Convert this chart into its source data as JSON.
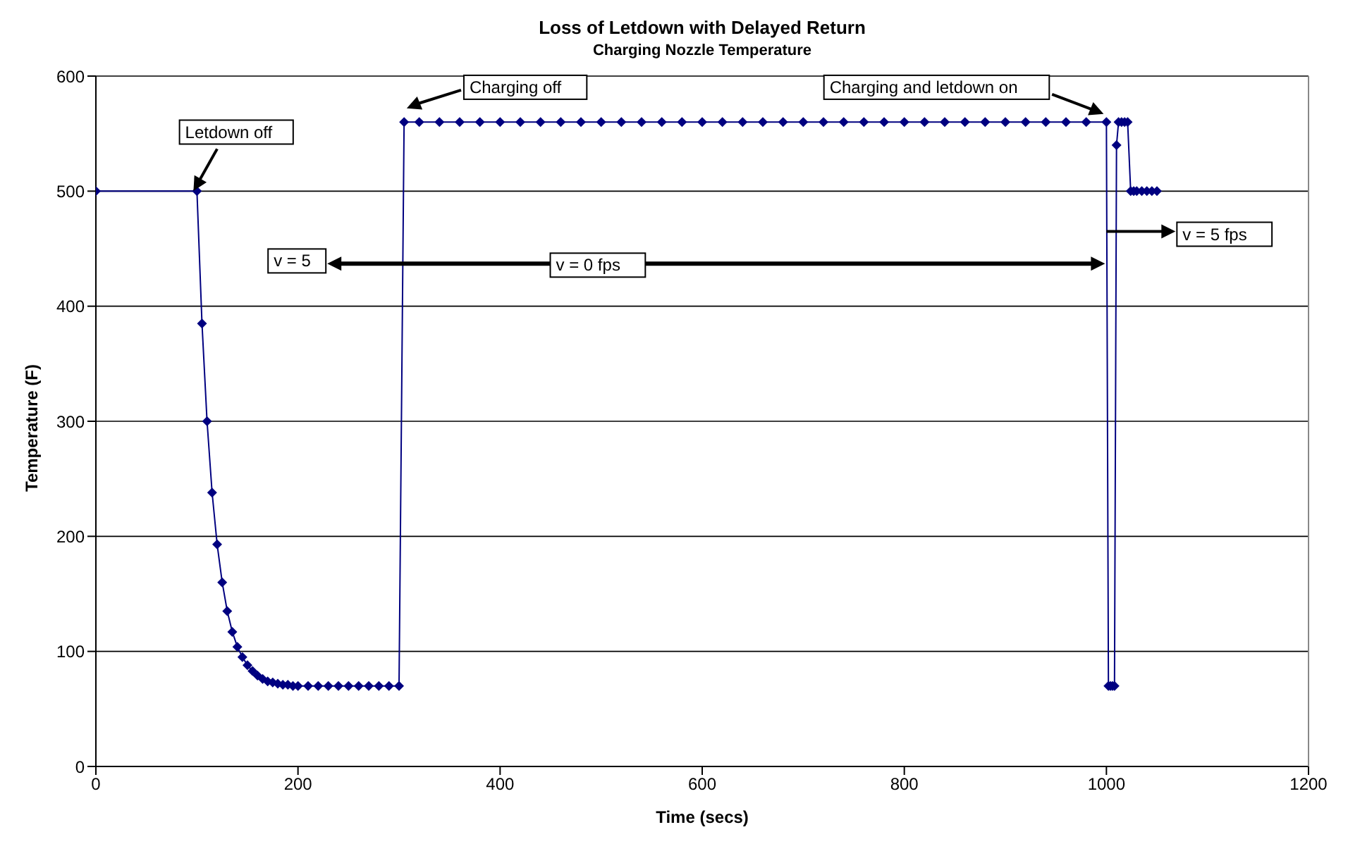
{
  "chart_data": {
    "type": "line",
    "title": "Loss of Letdown with Delayed Return",
    "subtitle": "Charging Nozzle Temperature",
    "xlabel": "Time (secs)",
    "ylabel": "Temperature (F)",
    "x": [
      0,
      100,
      105,
      110,
      115,
      120,
      125,
      130,
      135,
      140,
      145,
      150,
      155,
      160,
      165,
      170,
      175,
      180,
      185,
      190,
      195,
      200,
      210,
      220,
      230,
      240,
      250,
      260,
      270,
      280,
      290,
      300,
      305,
      320,
      340,
      360,
      380,
      400,
      420,
      440,
      460,
      480,
      500,
      520,
      540,
      560,
      580,
      600,
      620,
      640,
      660,
      680,
      700,
      720,
      740,
      760,
      780,
      800,
      820,
      840,
      860,
      880,
      900,
      920,
      940,
      960,
      980,
      1000,
      1002,
      1004,
      1006,
      1008,
      1010,
      1012,
      1015,
      1018,
      1021,
      1024,
      1027,
      1030,
      1035,
      1040,
      1045,
      1050
    ],
    "series": [
      {
        "color": "#000080",
        "values": [
          500,
          500,
          385,
          300,
          238,
          193,
          160,
          135,
          117,
          104,
          95,
          88,
          83,
          79,
          76,
          74,
          73,
          72,
          71,
          71,
          70,
          70,
          70,
          70,
          70,
          70,
          70,
          70,
          70,
          70,
          70,
          70,
          560,
          560,
          560,
          560,
          560,
          560,
          560,
          560,
          560,
          560,
          560,
          560,
          560,
          560,
          560,
          560,
          560,
          560,
          560,
          560,
          560,
          560,
          560,
          560,
          560,
          560,
          560,
          560,
          560,
          560,
          560,
          560,
          560,
          560,
          560,
          560,
          70,
          70,
          70,
          70,
          540,
          560,
          560,
          560,
          560,
          500,
          500,
          500,
          500,
          500,
          500,
          500
        ]
      }
    ],
    "xlim": [
      0,
      1200
    ],
    "xticks": [
      0,
      200,
      400,
      600,
      800,
      1000,
      1200
    ],
    "ylim": [
      0,
      600
    ],
    "yticks": [
      0,
      100,
      200,
      300,
      400,
      500,
      600
    ],
    "grid": "y",
    "marker": "diamond",
    "line_style": "solid",
    "annotations": [
      "Letdown off",
      "Charging off",
      "Charging and letdown on",
      "v = 5",
      "v = 0 fps",
      {
        "text": "v = 5 fps",
        "x": 1000,
        "y": 465
      }
    ]
  }
}
